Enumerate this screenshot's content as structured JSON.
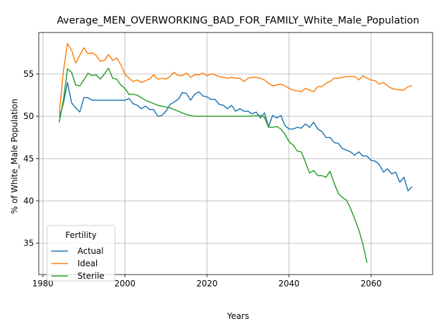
{
  "chart_data": {
    "type": "line",
    "title": "Average_MEN_OVERWORKING_BAD_FOR_FAMILY_White_Male_Population",
    "xlabel": "Years",
    "ylabel": "% of White_Male Population",
    "xlim": [
      1979,
      2075
    ],
    "ylim": [
      31.3,
      59.9
    ],
    "xticks": [
      1980,
      2000,
      2020,
      2040,
      2060
    ],
    "yticks": [
      35,
      40,
      45,
      50,
      55
    ],
    "grid": true,
    "legend": {
      "title": "Fertility",
      "placement": "lower-left"
    },
    "series": [
      {
        "name": "Actual",
        "color": "#1f77b4",
        "points": [
          [
            1984,
            49.9
          ],
          [
            1985,
            51.5
          ],
          [
            1986,
            54.0
          ],
          [
            1987,
            51.6
          ],
          [
            1988,
            51.0
          ],
          [
            1989,
            50.5
          ],
          [
            1990,
            52.2
          ],
          [
            1991,
            52.2
          ],
          [
            1992,
            51.9
          ],
          [
            1994,
            51.9
          ],
          [
            1996,
            51.9
          ],
          [
            1998,
            51.9
          ],
          [
            2000,
            51.9
          ],
          [
            2001,
            52.1
          ],
          [
            2002,
            51.5
          ],
          [
            2003,
            51.3
          ],
          [
            2004,
            50.9
          ],
          [
            2005,
            51.2
          ],
          [
            2006,
            50.8
          ],
          [
            2007,
            50.8
          ],
          [
            2008,
            50.0
          ],
          [
            2009,
            50.1
          ],
          [
            2010,
            50.6
          ],
          [
            2011,
            51.4
          ],
          [
            2012,
            51.7
          ],
          [
            2013,
            52.0
          ],
          [
            2014,
            52.8
          ],
          [
            2015,
            52.7
          ],
          [
            2016,
            51.9
          ],
          [
            2017,
            52.6
          ],
          [
            2018,
            52.9
          ],
          [
            2019,
            52.4
          ],
          [
            2020,
            52.3
          ],
          [
            2021,
            52.0
          ],
          [
            2022,
            52.0
          ],
          [
            2023,
            51.4
          ],
          [
            2024,
            51.3
          ],
          [
            2025,
            50.9
          ],
          [
            2026,
            51.3
          ],
          [
            2027,
            50.6
          ],
          [
            2028,
            50.9
          ],
          [
            2029,
            50.6
          ],
          [
            2030,
            50.6
          ],
          [
            2031,
            50.3
          ],
          [
            2032,
            50.5
          ],
          [
            2033,
            49.8
          ],
          [
            2034,
            50.4
          ],
          [
            2035,
            48.8
          ],
          [
            2036,
            50.1
          ],
          [
            2037,
            49.8
          ],
          [
            2038,
            50.1
          ],
          [
            2039,
            48.9
          ],
          [
            2040,
            48.5
          ],
          [
            2041,
            48.5
          ],
          [
            2042,
            48.7
          ],
          [
            2043,
            48.6
          ],
          [
            2044,
            49.1
          ],
          [
            2045,
            48.7
          ],
          [
            2046,
            49.3
          ],
          [
            2047,
            48.5
          ],
          [
            2048,
            48.2
          ],
          [
            2049,
            47.5
          ],
          [
            2050,
            47.5
          ],
          [
            2051,
            46.9
          ],
          [
            2052,
            46.8
          ],
          [
            2053,
            46.2
          ],
          [
            2054,
            46.0
          ],
          [
            2055,
            45.8
          ],
          [
            2056,
            45.4
          ],
          [
            2057,
            45.8
          ],
          [
            2058,
            45.3
          ],
          [
            2059,
            45.3
          ],
          [
            2060,
            44.8
          ],
          [
            2061,
            44.7
          ],
          [
            2062,
            44.3
          ],
          [
            2063,
            43.4
          ],
          [
            2064,
            43.8
          ],
          [
            2065,
            43.2
          ],
          [
            2066,
            43.4
          ],
          [
            2067,
            42.2
          ],
          [
            2068,
            42.8
          ],
          [
            2069,
            41.2
          ],
          [
            2070,
            41.7
          ]
        ]
      },
      {
        "name": "Ideal",
        "color": "#ff7f0e",
        "points": [
          [
            1984,
            50.3
          ],
          [
            1985,
            55.3
          ],
          [
            1986,
            58.6
          ],
          [
            1987,
            57.8
          ],
          [
            1988,
            56.3
          ],
          [
            1989,
            57.2
          ],
          [
            1990,
            58.1
          ],
          [
            1991,
            57.4
          ],
          [
            1992,
            57.5
          ],
          [
            1993,
            57.2
          ],
          [
            1994,
            56.5
          ],
          [
            1995,
            56.6
          ],
          [
            1996,
            57.3
          ],
          [
            1997,
            56.6
          ],
          [
            1998,
            56.9
          ],
          [
            1999,
            56.1
          ],
          [
            2000,
            55.0
          ],
          [
            2001,
            54.5
          ],
          [
            2002,
            54.1
          ],
          [
            2003,
            54.3
          ],
          [
            2004,
            54.0
          ],
          [
            2005,
            54.2
          ],
          [
            2006,
            54.4
          ],
          [
            2007,
            54.9
          ],
          [
            2008,
            54.4
          ],
          [
            2009,
            54.5
          ],
          [
            2010,
            54.4
          ],
          [
            2011,
            54.7
          ],
          [
            2012,
            55.2
          ],
          [
            2013,
            54.8
          ],
          [
            2014,
            54.8
          ],
          [
            2015,
            55.1
          ],
          [
            2016,
            54.6
          ],
          [
            2017,
            54.9
          ],
          [
            2018,
            54.9
          ],
          [
            2019,
            55.1
          ],
          [
            2020,
            54.8
          ],
          [
            2021,
            55.0
          ],
          [
            2022,
            54.9
          ],
          [
            2023,
            54.7
          ],
          [
            2024,
            54.6
          ],
          [
            2025,
            54.5
          ],
          [
            2026,
            54.6
          ],
          [
            2027,
            54.5
          ],
          [
            2028,
            54.5
          ],
          [
            2029,
            54.1
          ],
          [
            2030,
            54.5
          ],
          [
            2031,
            54.6
          ],
          [
            2032,
            54.6
          ],
          [
            2033,
            54.5
          ],
          [
            2034,
            54.3
          ],
          [
            2035,
            53.9
          ],
          [
            2036,
            53.6
          ],
          [
            2037,
            53.7
          ],
          [
            2038,
            53.8
          ],
          [
            2039,
            53.6
          ],
          [
            2040,
            53.3
          ],
          [
            2041,
            53.1
          ],
          [
            2042,
            53.0
          ],
          [
            2043,
            52.9
          ],
          [
            2044,
            53.3
          ],
          [
            2045,
            53.1
          ],
          [
            2046,
            52.9
          ],
          [
            2047,
            53.5
          ],
          [
            2048,
            53.5
          ],
          [
            2049,
            53.9
          ],
          [
            2050,
            54.1
          ],
          [
            2051,
            54.5
          ],
          [
            2052,
            54.5
          ],
          [
            2053,
            54.6
          ],
          [
            2054,
            54.7
          ],
          [
            2055,
            54.7
          ],
          [
            2056,
            54.7
          ],
          [
            2057,
            54.3
          ],
          [
            2058,
            54.8
          ],
          [
            2059,
            54.5
          ],
          [
            2060,
            54.3
          ],
          [
            2061,
            54.2
          ],
          [
            2062,
            53.8
          ],
          [
            2063,
            54.0
          ],
          [
            2064,
            53.6
          ],
          [
            2065,
            53.3
          ],
          [
            2066,
            53.2
          ],
          [
            2067,
            53.1
          ],
          [
            2068,
            53.1
          ],
          [
            2069,
            53.5
          ],
          [
            2070,
            53.6
          ]
        ]
      },
      {
        "name": "Sterile",
        "color": "#2ca02c",
        "points": [
          [
            1984,
            49.3
          ],
          [
            1985,
            51.9
          ],
          [
            1986,
            55.6
          ],
          [
            1987,
            55.2
          ],
          [
            1988,
            53.7
          ],
          [
            1989,
            53.6
          ],
          [
            1990,
            54.3
          ],
          [
            1991,
            55.1
          ],
          [
            1992,
            54.8
          ],
          [
            1993,
            54.9
          ],
          [
            1994,
            54.4
          ],
          [
            1995,
            55.0
          ],
          [
            1996,
            55.7
          ],
          [
            1997,
            54.5
          ],
          [
            1998,
            54.4
          ],
          [
            1999,
            53.7
          ],
          [
            2000,
            53.3
          ],
          [
            2001,
            52.6
          ],
          [
            2002,
            52.6
          ],
          [
            2003,
            52.5
          ],
          [
            2004,
            52.2
          ],
          [
            2005,
            51.9
          ],
          [
            2006,
            51.7
          ],
          [
            2007,
            51.5
          ],
          [
            2008,
            51.3
          ],
          [
            2009,
            51.2
          ],
          [
            2010,
            51.1
          ],
          [
            2011,
            51.0
          ],
          [
            2012,
            50.8
          ],
          [
            2013,
            50.6
          ],
          [
            2014,
            50.4
          ],
          [
            2015,
            50.2
          ],
          [
            2016,
            50.1
          ],
          [
            2017,
            50.0
          ],
          [
            2018,
            50.0
          ],
          [
            2020,
            50.0
          ],
          [
            2025,
            50.0
          ],
          [
            2030,
            50.0
          ],
          [
            2033,
            50.1
          ],
          [
            2034,
            49.9
          ],
          [
            2035,
            48.7
          ],
          [
            2036,
            48.7
          ],
          [
            2037,
            48.8
          ],
          [
            2038,
            48.5
          ],
          [
            2039,
            47.9
          ],
          [
            2040,
            47.0
          ],
          [
            2041,
            46.6
          ],
          [
            2042,
            45.9
          ],
          [
            2043,
            45.8
          ],
          [
            2044,
            44.6
          ],
          [
            2045,
            43.3
          ],
          [
            2046,
            43.6
          ],
          [
            2047,
            43.0
          ],
          [
            2048,
            43.0
          ],
          [
            2049,
            42.8
          ],
          [
            2050,
            43.5
          ],
          [
            2051,
            42.1
          ],
          [
            2052,
            40.9
          ],
          [
            2053,
            40.4
          ],
          [
            2054,
            40.1
          ],
          [
            2055,
            39.1
          ],
          [
            2056,
            37.9
          ],
          [
            2057,
            36.6
          ],
          [
            2058,
            34.9
          ],
          [
            2059,
            32.7
          ]
        ]
      }
    ]
  }
}
